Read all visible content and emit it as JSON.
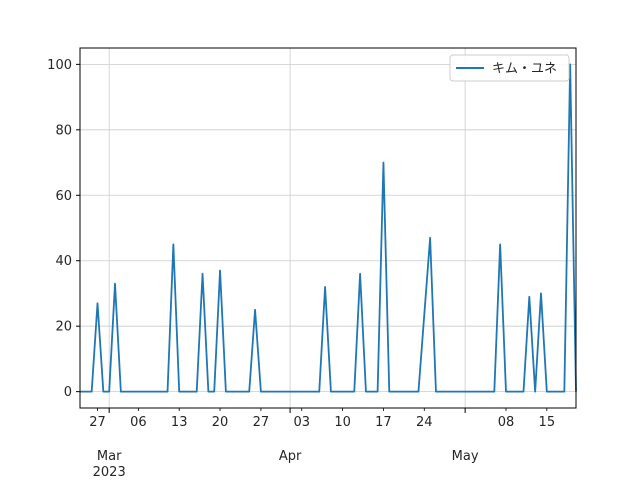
{
  "chart_data": {
    "type": "line",
    "x_type": "date",
    "xlim": [
      "2023-02-24",
      "2023-05-20"
    ],
    "ylim": [
      -5,
      105
    ],
    "grid": true,
    "legend_position": "top-right",
    "y_ticks": [
      0,
      20,
      40,
      60,
      80,
      100
    ],
    "x_minor_ticks": [
      {
        "date": "2023-02-27",
        "label": "27"
      },
      {
        "date": "2023-03-06",
        "label": "06"
      },
      {
        "date": "2023-03-13",
        "label": "13"
      },
      {
        "date": "2023-03-20",
        "label": "20"
      },
      {
        "date": "2023-03-27",
        "label": "27"
      },
      {
        "date": "2023-04-03",
        "label": "03"
      },
      {
        "date": "2023-04-10",
        "label": "10"
      },
      {
        "date": "2023-04-17",
        "label": "17"
      },
      {
        "date": "2023-04-24",
        "label": "24"
      },
      {
        "date": "2023-05-08",
        "label": "08"
      },
      {
        "date": "2023-05-15",
        "label": "15"
      }
    ],
    "x_major_ticks": [
      {
        "date": "2023-03-01",
        "label": "Mar",
        "sublabel": "2023"
      },
      {
        "date": "2023-04-01",
        "label": "Apr",
        "sublabel": ""
      },
      {
        "date": "2023-05-01",
        "label": "May",
        "sublabel": ""
      }
    ],
    "series": [
      {
        "name": "キム・ユネ",
        "color": "#1f77b4",
        "points": [
          [
            "2023-02-24",
            0
          ],
          [
            "2023-02-26",
            0
          ],
          [
            "2023-02-27",
            27
          ],
          [
            "2023-02-28",
            0
          ],
          [
            "2023-03-01",
            0
          ],
          [
            "2023-03-02",
            33
          ],
          [
            "2023-03-03",
            0
          ],
          [
            "2023-03-11",
            0
          ],
          [
            "2023-03-12",
            45
          ],
          [
            "2023-03-13",
            0
          ],
          [
            "2023-03-16",
            0
          ],
          [
            "2023-03-17",
            36
          ],
          [
            "2023-03-18",
            0
          ],
          [
            "2023-03-19",
            0
          ],
          [
            "2023-03-20",
            37
          ],
          [
            "2023-03-21",
            0
          ],
          [
            "2023-03-25",
            0
          ],
          [
            "2023-03-26",
            25
          ],
          [
            "2023-03-27",
            0
          ],
          [
            "2023-04-06",
            0
          ],
          [
            "2023-04-07",
            32
          ],
          [
            "2023-04-08",
            0
          ],
          [
            "2023-04-12",
            0
          ],
          [
            "2023-04-13",
            36
          ],
          [
            "2023-04-14",
            0
          ],
          [
            "2023-04-16",
            0
          ],
          [
            "2023-04-17",
            70
          ],
          [
            "2023-04-18",
            0
          ],
          [
            "2023-04-23",
            0
          ],
          [
            "2023-04-25",
            47
          ],
          [
            "2023-04-26",
            0
          ],
          [
            "2023-05-06",
            0
          ],
          [
            "2023-05-07",
            45
          ],
          [
            "2023-05-08",
            0
          ],
          [
            "2023-05-11",
            0
          ],
          [
            "2023-05-12",
            29
          ],
          [
            "2023-05-13",
            0
          ],
          [
            "2023-05-14",
            30
          ],
          [
            "2023-05-15",
            0
          ],
          [
            "2023-05-18",
            0
          ],
          [
            "2023-05-19",
            100
          ],
          [
            "2023-05-20",
            0
          ]
        ]
      }
    ]
  }
}
